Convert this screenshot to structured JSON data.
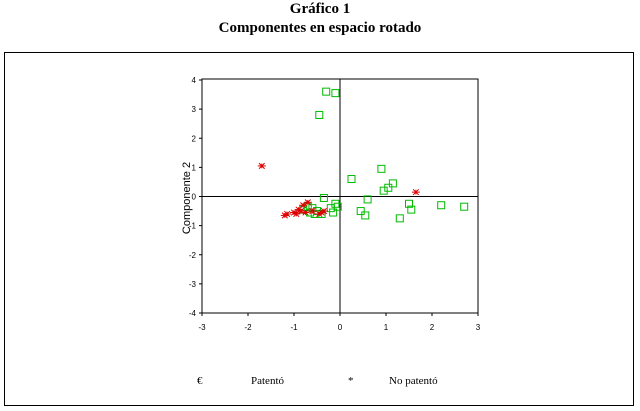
{
  "header": {
    "title": "Gráfico 1",
    "subtitle": "Componentes en espacio rotado"
  },
  "chart_data": {
    "type": "scatter",
    "xlabel": "",
    "ylabel": "Componente 2",
    "xlim": [
      -3,
      3
    ],
    "ylim": [
      -4,
      4.3
    ],
    "xticks": [
      "-3",
      "-2",
      "-1",
      "0",
      "1",
      "2",
      "3"
    ],
    "yticks": [
      "4",
      "3",
      "2",
      "1",
      "0",
      "-1",
      "-2",
      "-3",
      "-4"
    ],
    "grid": false,
    "reference_lines": {
      "x": 0,
      "y": 0
    },
    "legend": {
      "placement": "bottom",
      "items": [
        {
          "symbol": "€",
          "label": "Patentó",
          "marker": "square",
          "color": "#00bb00"
        },
        {
          "symbol": "*",
          "label": "No patentó",
          "marker": "asterisk",
          "color": "#dd0000"
        }
      ]
    },
    "series": [
      {
        "marker": "square",
        "color": "#00bb00",
        "points": [
          [
            -0.3,
            3.6
          ],
          [
            -0.1,
            3.55
          ],
          [
            -0.45,
            2.8
          ],
          [
            0.25,
            0.6
          ],
          [
            0.9,
            0.95
          ],
          [
            1.15,
            0.45
          ],
          [
            1.05,
            0.3
          ],
          [
            0.95,
            0.2
          ],
          [
            -0.35,
            -0.05
          ],
          [
            0.6,
            -0.1
          ],
          [
            -0.1,
            -0.25
          ],
          [
            -0.05,
            -0.35
          ],
          [
            -0.2,
            -0.4
          ],
          [
            0.45,
            -0.5
          ],
          [
            0.55,
            -0.65
          ],
          [
            1.5,
            -0.25
          ],
          [
            1.55,
            -0.45
          ],
          [
            1.3,
            -0.75
          ],
          [
            2.2,
            -0.3
          ],
          [
            2.7,
            -0.35
          ],
          [
            -0.6,
            -0.4
          ],
          [
            -0.5,
            -0.5
          ],
          [
            -0.55,
            -0.6
          ],
          [
            -0.15,
            -0.55
          ],
          [
            -0.8,
            -0.45
          ],
          [
            -0.65,
            -0.55
          ],
          [
            -0.7,
            -0.35
          ],
          [
            -0.4,
            -0.6
          ]
        ]
      },
      {
        "marker": "asterisk",
        "color": "#dd0000",
        "points": [
          [
            -1.7,
            1.05
          ],
          [
            1.65,
            0.15
          ],
          [
            -0.7,
            -0.2
          ],
          [
            -0.8,
            -0.3
          ],
          [
            -0.9,
            -0.45
          ],
          [
            -1.0,
            -0.55
          ],
          [
            -0.85,
            -0.5
          ],
          [
            -0.75,
            -0.55
          ],
          [
            -0.95,
            -0.6
          ],
          [
            -1.2,
            -0.65
          ],
          [
            -1.15,
            -0.6
          ],
          [
            -0.4,
            -0.55
          ],
          [
            -0.45,
            -0.6
          ],
          [
            -0.6,
            -0.5
          ],
          [
            -0.35,
            -0.5
          ]
        ]
      }
    ]
  }
}
